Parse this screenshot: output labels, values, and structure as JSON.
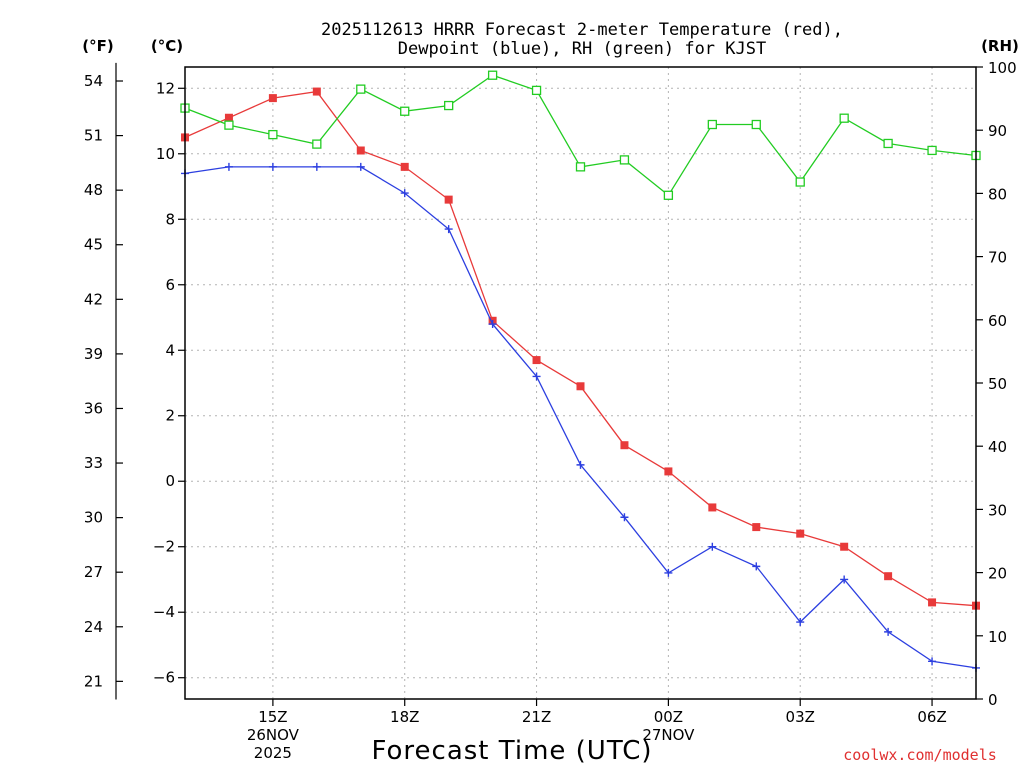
{
  "chart_data": {
    "type": "line",
    "title_lines": [
      "2025112613 HRRR Forecast 2-meter Temperature (red),",
      "Dewpoint (blue), RH (green) for KJST"
    ],
    "xlabel": "Forecast Time (UTC)",
    "credit": "coolwx.com/models",
    "units": {
      "fahrenheit": "(°F)",
      "celsius": "(°C)",
      "rh": "(RH)"
    },
    "x_hours": [
      13,
      14,
      15,
      16,
      17,
      18,
      19,
      20,
      21,
      22,
      23,
      24,
      25,
      26,
      27,
      28,
      29,
      30,
      31
    ],
    "xlim": [
      13,
      31
    ],
    "x_ticks": [
      {
        "hour": 15,
        "lines": [
          "15Z",
          "26NOV",
          "2025"
        ]
      },
      {
        "hour": 18,
        "lines": [
          "18Z"
        ]
      },
      {
        "hour": 21,
        "lines": [
          "21Z"
        ]
      },
      {
        "hour": 24,
        "lines": [
          "00Z",
          "27NOV"
        ]
      },
      {
        "hour": 27,
        "lines": [
          "03Z"
        ]
      },
      {
        "hour": 30,
        "lines": [
          "06Z"
        ]
      }
    ],
    "ylim_c": [
      -6.65,
      12.65
    ],
    "yticks_c": [
      "12",
      "10",
      "8",
      "6",
      "4",
      "2",
      "0",
      "−2",
      "−4",
      "−6"
    ],
    "yticks_c_values": [
      12,
      10,
      8,
      6,
      4,
      2,
      0,
      -2,
      -4,
      -6
    ],
    "yticks_f": [
      "54",
      "51",
      "48",
      "45",
      "42",
      "39",
      "36",
      "33",
      "30",
      "27",
      "24",
      "21"
    ],
    "yticks_f_values": [
      54,
      51,
      48,
      45,
      42,
      39,
      36,
      33,
      30,
      27,
      24,
      21
    ],
    "ylim_rh": [
      0,
      100
    ],
    "yticks_rh": [
      "100",
      "90",
      "80",
      "70",
      "60",
      "50",
      "40",
      "30",
      "20",
      "10",
      "0"
    ],
    "yticks_rh_values": [
      100,
      90,
      80,
      70,
      60,
      50,
      40,
      30,
      20,
      10,
      0
    ],
    "series": [
      {
        "name": "Temperature",
        "axis": "celsius",
        "color": "#e83a3a",
        "marker": "filled-square",
        "values": [
          10.5,
          11.1,
          11.7,
          11.9,
          10.1,
          9.6,
          8.6,
          4.9,
          3.7,
          2.9,
          1.1,
          0.3,
          -0.8,
          -1.4,
          -1.6,
          -2.0,
          -2.9,
          -3.7,
          -3.8
        ]
      },
      {
        "name": "Dewpoint",
        "axis": "celsius",
        "color": "#2c3fe0",
        "marker": "plus",
        "values": [
          9.4,
          9.6,
          9.6,
          9.6,
          9.6,
          8.8,
          7.7,
          4.8,
          3.2,
          0.5,
          -1.1,
          -2.8,
          -2.0,
          -2.6,
          -4.3,
          -3.0,
          -4.6,
          -5.5,
          -5.7
        ]
      },
      {
        "name": "RH",
        "axis": "rh",
        "color": "#22cc22",
        "marker": "open-square",
        "values": [
          93.5,
          90.8,
          89.3,
          87.8,
          96.5,
          93,
          93.9,
          98.7,
          96.3,
          84.2,
          85.3,
          79.7,
          90.9,
          90.9,
          81.8,
          91.9,
          87.9,
          86.8,
          86
        ]
      }
    ]
  }
}
